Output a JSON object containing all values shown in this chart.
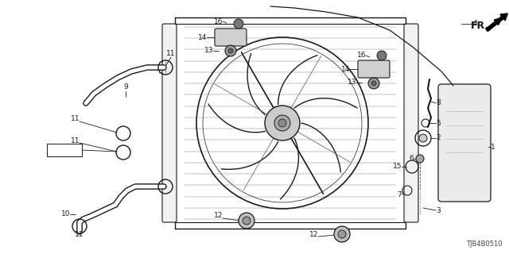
{
  "bg_color": "#ffffff",
  "diagram_code": "TJB4B0510",
  "fr_label": "FR.",
  "line_color": "#1a1a1a",
  "font_size": 6.5,
  "fig_w": 6.4,
  "fig_h": 3.2,
  "dpi": 100
}
